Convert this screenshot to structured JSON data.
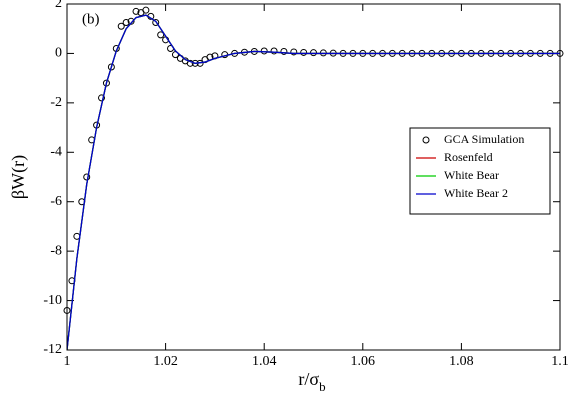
{
  "chart_data": {
    "type": "line",
    "ylabel": "βW(r)",
    "xlabel": "r/σ",
    "xlabel_subscript": "b",
    "annotation": "(b)",
    "xlim": [
      1,
      1.1
    ],
    "xticks": [
      1,
      1.02,
      1.04,
      1.06,
      1.08,
      1.1
    ],
    "ylim": [
      -12,
      2
    ],
    "yticks": [
      -12,
      -10,
      -8,
      -6,
      -4,
      -2,
      0,
      2
    ],
    "grid": false,
    "legend": "right",
    "series": [
      {
        "name": "GCA Simulation",
        "color": "#000000",
        "marker": "circle",
        "x": [
          1.0,
          1.001,
          1.002,
          1.003,
          1.004,
          1.005,
          1.006,
          1.007,
          1.008,
          1.009,
          1.01,
          1.011,
          1.012,
          1.013,
          1.014,
          1.015,
          1.016,
          1.017,
          1.018,
          1.019,
          1.02,
          1.021,
          1.022,
          1.023,
          1.024,
          1.025,
          1.026,
          1.027,
          1.028,
          1.029,
          1.03,
          1.032,
          1.034,
          1.036,
          1.038,
          1.04,
          1.042,
          1.044,
          1.046,
          1.048,
          1.05,
          1.052,
          1.054,
          1.056,
          1.058,
          1.06,
          1.062,
          1.064,
          1.066,
          1.068,
          1.07,
          1.072,
          1.074,
          1.076,
          1.078,
          1.08,
          1.082,
          1.084,
          1.086,
          1.088,
          1.09,
          1.092,
          1.094,
          1.096,
          1.098,
          1.1
        ],
        "values": [
          -10.4,
          -9.2,
          -7.4,
          -6.0,
          -5.0,
          -3.5,
          -2.9,
          -1.8,
          -1.2,
          -0.55,
          0.2,
          1.1,
          1.25,
          1.3,
          1.7,
          1.65,
          1.75,
          1.5,
          1.25,
          0.75,
          0.55,
          0.2,
          -0.05,
          -0.2,
          -0.3,
          -0.4,
          -0.4,
          -0.4,
          -0.25,
          -0.15,
          -0.1,
          -0.05,
          0.0,
          0.05,
          0.08,
          0.1,
          0.1,
          0.08,
          0.06,
          0.04,
          0.03,
          0.02,
          0.01,
          0.0,
          0,
          0,
          0,
          0,
          0,
          0,
          0,
          0,
          0,
          0,
          0,
          0,
          0,
          0,
          0,
          0,
          0,
          0,
          0,
          0,
          0,
          0
        ]
      },
      {
        "name": "Rosenfeld",
        "color": "#cc0000",
        "x": [
          1.0,
          1.002,
          1.004,
          1.006,
          1.008,
          1.01,
          1.012,
          1.014,
          1.016,
          1.018,
          1.02,
          1.022,
          1.024,
          1.026,
          1.028,
          1.03,
          1.034,
          1.038,
          1.042,
          1.046,
          1.05,
          1.06,
          1.07,
          1.08,
          1.09,
          1.1
        ],
        "values": [
          -12,
          -8.3,
          -5.3,
          -3.0,
          -1.2,
          0.1,
          1.0,
          1.45,
          1.55,
          1.3,
          0.7,
          0.1,
          -0.25,
          -0.4,
          -0.35,
          -0.2,
          0.0,
          0.08,
          0.05,
          0.0,
          0,
          0,
          0,
          0,
          0,
          0
        ]
      },
      {
        "name": "White Bear",
        "color": "#00cc00",
        "x": [
          1.0,
          1.002,
          1.004,
          1.006,
          1.008,
          1.01,
          1.012,
          1.014,
          1.016,
          1.018,
          1.02,
          1.022,
          1.024,
          1.026,
          1.028,
          1.03,
          1.034,
          1.038,
          1.042,
          1.046,
          1.05,
          1.06,
          1.07,
          1.08,
          1.09,
          1.1
        ],
        "values": [
          -12,
          -8.3,
          -5.3,
          -3.0,
          -1.2,
          0.1,
          1.0,
          1.45,
          1.55,
          1.3,
          0.7,
          0.1,
          -0.25,
          -0.4,
          -0.35,
          -0.2,
          0.0,
          0.08,
          0.05,
          0.0,
          0,
          0,
          0,
          0,
          0,
          0
        ]
      },
      {
        "name": "White Bear 2",
        "color": "#0000cc",
        "x": [
          1.0,
          1.002,
          1.004,
          1.006,
          1.008,
          1.01,
          1.012,
          1.014,
          1.016,
          1.018,
          1.02,
          1.022,
          1.024,
          1.026,
          1.028,
          1.03,
          1.034,
          1.038,
          1.042,
          1.046,
          1.05,
          1.06,
          1.07,
          1.08,
          1.09,
          1.1
        ],
        "values": [
          -12,
          -8.3,
          -5.3,
          -3.0,
          -1.2,
          0.1,
          1.0,
          1.45,
          1.55,
          1.3,
          0.7,
          0.1,
          -0.25,
          -0.4,
          -0.35,
          -0.2,
          0.0,
          0.08,
          0.05,
          0.0,
          0,
          0,
          0,
          0,
          0,
          0
        ]
      }
    ]
  }
}
